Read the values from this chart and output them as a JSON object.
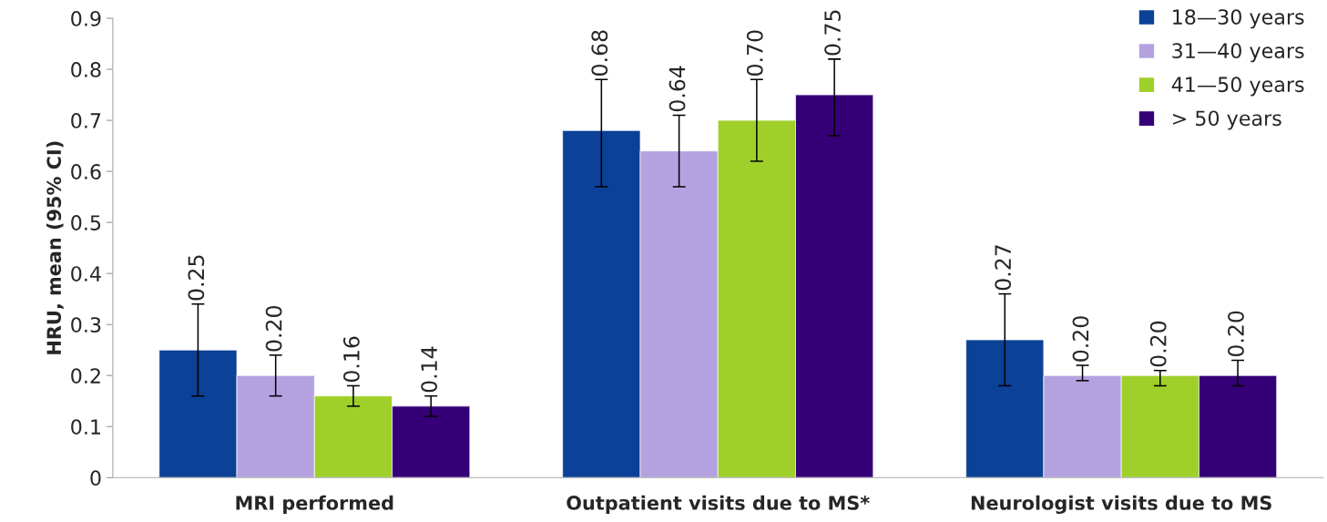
{
  "chart_data": {
    "type": "bar",
    "ylabel": "HRU, mean (95% CI)",
    "categories": [
      "MRI performed",
      "Outpatient visits due to MS*",
      "Neurologist visits due to MS"
    ],
    "series": [
      {
        "name": "18—30 years",
        "color": "#0b4196",
        "values": [
          0.25,
          0.68,
          0.27
        ],
        "errors": [
          [
            0.16,
            0.34
          ],
          [
            0.57,
            0.78
          ],
          [
            0.18,
            0.36
          ]
        ]
      },
      {
        "name": "31—40 years",
        "color": "#b4a2e0",
        "values": [
          0.2,
          0.64,
          0.2
        ],
        "errors": [
          [
            0.16,
            0.24
          ],
          [
            0.57,
            0.71
          ],
          [
            0.19,
            0.22
          ]
        ]
      },
      {
        "name": "41—50 years",
        "color": "#9fd02a",
        "values": [
          0.16,
          0.7,
          0.2
        ],
        "errors": [
          [
            0.14,
            0.18
          ],
          [
            0.62,
            0.78
          ],
          [
            0.18,
            0.21
          ]
        ]
      },
      {
        "name": "> 50 years",
        "color": "#350077",
        "values": [
          0.14,
          0.75,
          0.2
        ],
        "errors": [
          [
            0.12,
            0.16
          ],
          [
            0.67,
            0.82
          ],
          [
            0.18,
            0.23
          ]
        ]
      }
    ],
    "ylim": [
      0,
      0.9
    ],
    "yticks": [
      {
        "value": 0,
        "label": "0"
      },
      0.1,
      0.2,
      0.3,
      0.4,
      0.5,
      0.6,
      0.7,
      0.8,
      0.9
    ],
    "value_labels": [
      [
        "0.25",
        "0.68",
        "0.27"
      ],
      [
        "0.20",
        "0.64",
        "0.20"
      ],
      [
        "0.16",
        "0.70",
        "0.20"
      ],
      [
        "0.14",
        "0.75",
        "0.20"
      ]
    ],
    "grid": false,
    "legend": "top right"
  }
}
